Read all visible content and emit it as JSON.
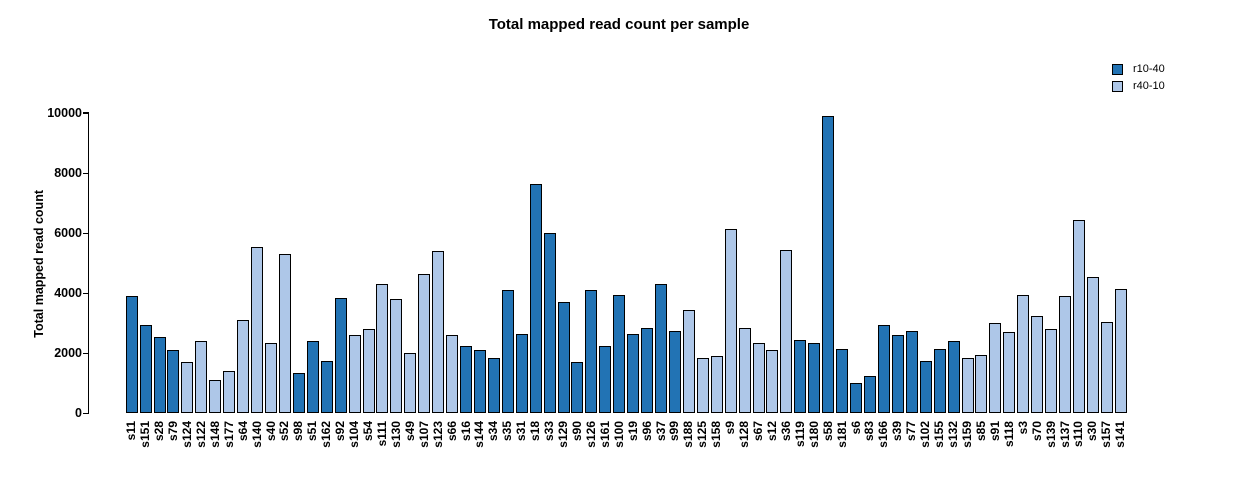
{
  "title": "Total mapped read count per sample",
  "y_axis": {
    "label": "Total mapped read count",
    "tick_values": [
      0,
      2000,
      4000,
      6000,
      8000,
      10000
    ]
  },
  "legend": {
    "items": [
      {
        "label": "r10-40",
        "color": "#2273B4"
      },
      {
        "label": "r40-10",
        "color": "#AEC7E8"
      }
    ]
  },
  "chart_data": {
    "type": "bar",
    "title": "Total mapped read count per sample",
    "xlabel": "",
    "ylabel": "Total mapped read count",
    "ylim": [
      0,
      10000
    ],
    "yticks": [
      0,
      2000,
      4000,
      6000,
      8000,
      10000
    ],
    "grid": false,
    "legend_position": "top-right",
    "bar_outline_color": "#000000",
    "series": [
      {
        "name": "r10-40",
        "color": "#2273B4"
      },
      {
        "name": "r40-10",
        "color": "#AEC7E8"
      }
    ],
    "samples": [
      {
        "name": "s11",
        "value": 3900,
        "series": "r10-40"
      },
      {
        "name": "s151",
        "value": 2950,
        "series": "r10-40"
      },
      {
        "name": "s28",
        "value": 2550,
        "series": "r10-40"
      },
      {
        "name": "s79",
        "value": 2100,
        "series": "r10-40"
      },
      {
        "name": "s124",
        "value": 1700,
        "series": "r40-10"
      },
      {
        "name": "s122",
        "value": 2400,
        "series": "r40-10"
      },
      {
        "name": "s148",
        "value": 1100,
        "series": "r40-10"
      },
      {
        "name": "s177",
        "value": 1400,
        "series": "r40-10"
      },
      {
        "name": "s64",
        "value": 3100,
        "series": "r40-10"
      },
      {
        "name": "s140",
        "value": 5550,
        "series": "r40-10"
      },
      {
        "name": "s40",
        "value": 2350,
        "series": "r40-10"
      },
      {
        "name": "s52",
        "value": 5300,
        "series": "r40-10"
      },
      {
        "name": "s98",
        "value": 1350,
        "series": "r10-40"
      },
      {
        "name": "s51",
        "value": 2400,
        "series": "r10-40"
      },
      {
        "name": "s162",
        "value": 1750,
        "series": "r10-40"
      },
      {
        "name": "s92",
        "value": 3850,
        "series": "r10-40"
      },
      {
        "name": "s104",
        "value": 2600,
        "series": "r40-10"
      },
      {
        "name": "s54",
        "value": 2800,
        "series": "r40-10"
      },
      {
        "name": "s111",
        "value": 4300,
        "series": "r40-10"
      },
      {
        "name": "s130",
        "value": 3800,
        "series": "r40-10"
      },
      {
        "name": "s49",
        "value": 2000,
        "series": "r40-10"
      },
      {
        "name": "s107",
        "value": 4650,
        "series": "r40-10"
      },
      {
        "name": "s123",
        "value": 5400,
        "series": "r40-10"
      },
      {
        "name": "s66",
        "value": 2600,
        "series": "r40-10"
      },
      {
        "name": "s16",
        "value": 2250,
        "series": "r10-40"
      },
      {
        "name": "s144",
        "value": 2100,
        "series": "r10-40"
      },
      {
        "name": "s34",
        "value": 1850,
        "series": "r10-40"
      },
      {
        "name": "s35",
        "value": 4100,
        "series": "r10-40"
      },
      {
        "name": "s31",
        "value": 2650,
        "series": "r10-40"
      },
      {
        "name": "s18",
        "value": 7650,
        "series": "r10-40"
      },
      {
        "name": "s33",
        "value": 6000,
        "series": "r10-40"
      },
      {
        "name": "s129",
        "value": 3700,
        "series": "r10-40"
      },
      {
        "name": "s90",
        "value": 1700,
        "series": "r10-40"
      },
      {
        "name": "s126",
        "value": 4100,
        "series": "r10-40"
      },
      {
        "name": "s161",
        "value": 2250,
        "series": "r10-40"
      },
      {
        "name": "s100",
        "value": 3950,
        "series": "r10-40"
      },
      {
        "name": "s19",
        "value": 2650,
        "series": "r10-40"
      },
      {
        "name": "s96",
        "value": 2850,
        "series": "r10-40"
      },
      {
        "name": "s37",
        "value": 4300,
        "series": "r10-40"
      },
      {
        "name": "s99",
        "value": 2750,
        "series": "r10-40"
      },
      {
        "name": "s188",
        "value": 3450,
        "series": "r40-10"
      },
      {
        "name": "s125",
        "value": 1850,
        "series": "r40-10"
      },
      {
        "name": "s158",
        "value": 1900,
        "series": "r40-10"
      },
      {
        "name": "s9",
        "value": 6150,
        "series": "r40-10"
      },
      {
        "name": "s128",
        "value": 2850,
        "series": "r40-10"
      },
      {
        "name": "s67",
        "value": 2350,
        "series": "r40-10"
      },
      {
        "name": "s12",
        "value": 2100,
        "series": "r40-10"
      },
      {
        "name": "s36",
        "value": 5450,
        "series": "r40-10"
      },
      {
        "name": "s119",
        "value": 2450,
        "series": "r10-40"
      },
      {
        "name": "s180",
        "value": 2350,
        "series": "r10-40"
      },
      {
        "name": "s58",
        "value": 9900,
        "series": "r10-40"
      },
      {
        "name": "s181",
        "value": 2150,
        "series": "r10-40"
      },
      {
        "name": "s6",
        "value": 1000,
        "series": "r10-40"
      },
      {
        "name": "s83",
        "value": 1250,
        "series": "r10-40"
      },
      {
        "name": "s166",
        "value": 2950,
        "series": "r10-40"
      },
      {
        "name": "s39",
        "value": 2600,
        "series": "r10-40"
      },
      {
        "name": "s77",
        "value": 2750,
        "series": "r10-40"
      },
      {
        "name": "s102",
        "value": 1750,
        "series": "r10-40"
      },
      {
        "name": "s155",
        "value": 2150,
        "series": "r10-40"
      },
      {
        "name": "s132",
        "value": 2400,
        "series": "r10-40"
      },
      {
        "name": "s159",
        "value": 1850,
        "series": "r40-10"
      },
      {
        "name": "s85",
        "value": 1950,
        "series": "r40-10"
      },
      {
        "name": "s91",
        "value": 3000,
        "series": "r40-10"
      },
      {
        "name": "s118",
        "value": 2700,
        "series": "r40-10"
      },
      {
        "name": "s3",
        "value": 3950,
        "series": "r40-10"
      },
      {
        "name": "s70",
        "value": 3250,
        "series": "r40-10"
      },
      {
        "name": "s139",
        "value": 2800,
        "series": "r40-10"
      },
      {
        "name": "s137",
        "value": 3900,
        "series": "r40-10"
      },
      {
        "name": "s110",
        "value": 6450,
        "series": "r40-10"
      },
      {
        "name": "s30",
        "value": 4550,
        "series": "r40-10"
      },
      {
        "name": "s157",
        "value": 3050,
        "series": "r40-10"
      },
      {
        "name": "s141",
        "value": 4150,
        "series": "r40-10"
      }
    ]
  }
}
